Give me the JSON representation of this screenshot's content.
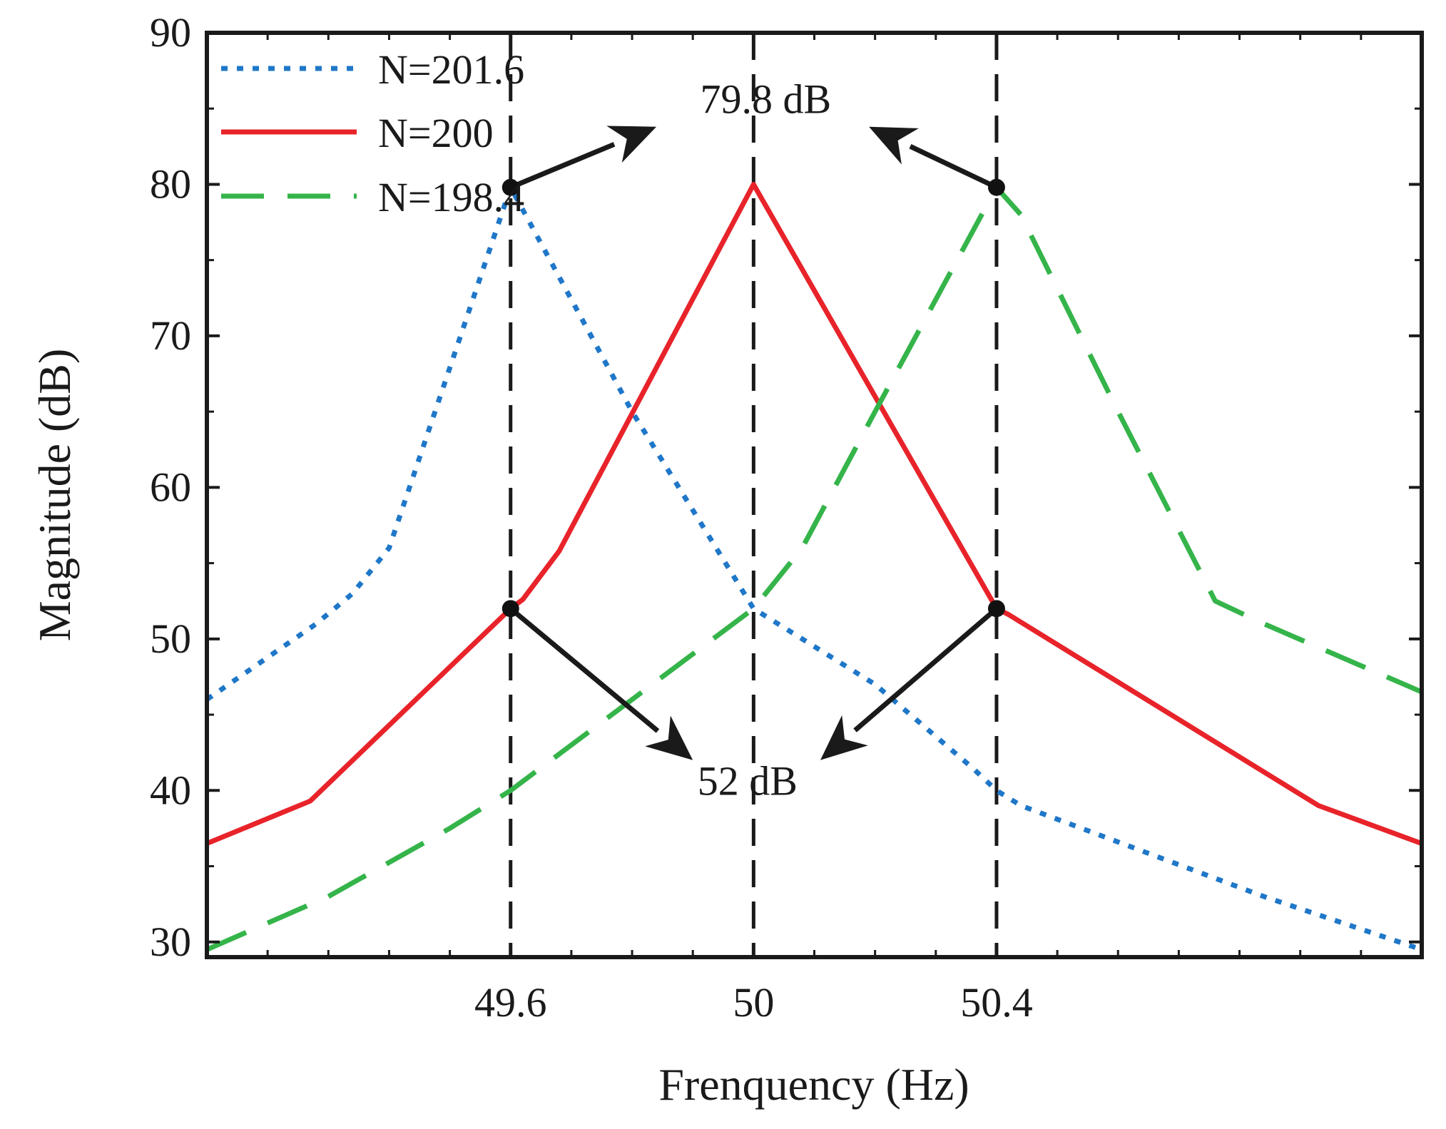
{
  "chart_data": {
    "type": "line",
    "title": "",
    "xlabel": "Frenquency (Hz)",
    "ylabel": "Magnitude (dB)",
    "xlim": [
      49.1,
      51.1
    ],
    "ylim": [
      29,
      90
    ],
    "x_ticks": [
      49.6,
      50,
      50.4
    ],
    "x_tick_labels": [
      "49.6",
      "50",
      "50.4"
    ],
    "y_ticks": [
      30,
      40,
      50,
      60,
      70,
      80,
      90
    ],
    "y_tick_labels": [
      "30",
      "40",
      "50",
      "60",
      "70",
      "80",
      "90"
    ],
    "grid": false,
    "legend_position": "top-left",
    "series": [
      {
        "name": "N=201.6",
        "style": "dotted",
        "color": "#1f77c8",
        "x": [
          49.1,
          49.28,
          49.34,
          49.4,
          49.6,
          49.8,
          50.0,
          50.2,
          50.36,
          50.4,
          50.44,
          50.64,
          50.84,
          51.1
        ],
        "y": [
          46.0,
          51.0,
          53.0,
          56.0,
          79.8,
          65.0,
          52.0,
          47.0,
          41.5,
          40.0,
          39.0,
          36.0,
          33.0,
          29.5
        ]
      },
      {
        "name": "N=200",
        "style": "solid",
        "color": "#e8232a",
        "x": [
          49.1,
          49.27,
          49.6,
          49.62,
          49.68,
          50.0,
          50.4,
          50.42,
          50.93,
          51.1
        ],
        "y": [
          36.5,
          39.3,
          52.0,
          52.6,
          55.8,
          80.0,
          52.0,
          51.6,
          39.0,
          36.5
        ]
      },
      {
        "name": "N=198.4",
        "style": "dashed",
        "color": "#35b44a",
        "x": [
          49.1,
          49.3,
          49.5,
          49.6,
          50.0,
          50.08,
          50.2,
          50.4,
          50.44,
          50.6,
          50.76,
          50.84,
          51.1
        ],
        "y": [
          29.5,
          33.0,
          37.5,
          40.0,
          52.0,
          56.0,
          65.0,
          79.8,
          78.0,
          65.0,
          52.5,
          51.0,
          46.5
        ]
      }
    ],
    "reference_lines_x": [
      49.6,
      50,
      50.4
    ],
    "markers": [
      {
        "x": 49.6,
        "y": 79.8
      },
      {
        "x": 50.4,
        "y": 79.8
      },
      {
        "x": 49.6,
        "y": 52
      },
      {
        "x": 50.4,
        "y": 52
      }
    ],
    "annotations": [
      {
        "text": "79.8 dB",
        "x": 50.02,
        "y": 84.7
      },
      {
        "text": "52 dB",
        "x": 49.99,
        "y": 39.7
      }
    ],
    "arrows": [
      {
        "from": [
          49.6,
          79.8
        ],
        "to": [
          49.84,
          83.8
        ]
      },
      {
        "from": [
          50.4,
          79.8
        ],
        "to": [
          50.19,
          83.8
        ]
      },
      {
        "from": [
          49.6,
          52
        ],
        "to": [
          49.9,
          42
        ]
      },
      {
        "from": [
          50.4,
          52
        ],
        "to": [
          50.11,
          42
        ]
      }
    ]
  }
}
